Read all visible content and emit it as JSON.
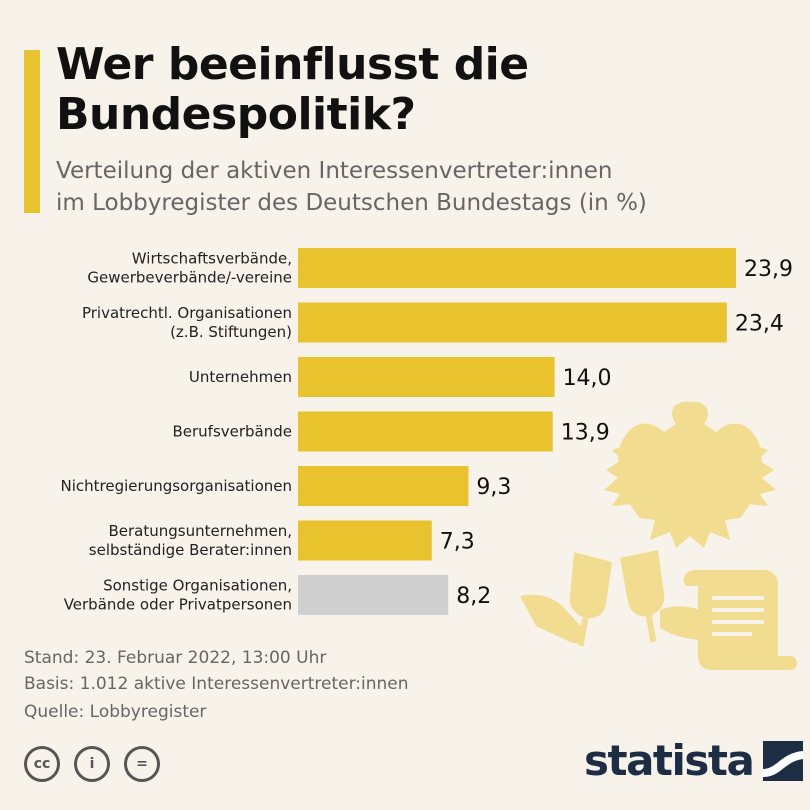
{
  "header": {
    "title": "Wer beeinflusst die\nBundespolitik?",
    "subtitle": "Verteilung der aktiven Interessenvertreter:innen\nim Lobbyregister des Deutschen Bundestags (in %)"
  },
  "colors": {
    "accent": "#e8c32e",
    "bar": "#e8c32e",
    "bar_other": "#cfcfcf",
    "illustration": "#f2dc90"
  },
  "chart_data": {
    "type": "bar",
    "orientation": "horizontal",
    "categories": [
      [
        "Wirtschaftsverbände,",
        "Gewerbeverbände/-vereine"
      ],
      [
        "Privatrechtl. Organisationen",
        "(z.B. Stiftungen)"
      ],
      [
        "Unternehmen"
      ],
      [
        "Berufsverbände"
      ],
      [
        "Nichtregierungsorganisationen"
      ],
      [
        "Beratungsunternehmen,",
        "selbständige Berater:innen"
      ],
      [
        "Sonstige Organisationen,",
        "Verbände oder Privatpersonen"
      ]
    ],
    "values": [
      23.9,
      23.4,
      14.0,
      13.9,
      9.3,
      7.3,
      8.2
    ],
    "value_labels": [
      "23,9",
      "23,4",
      "14,0",
      "13,9",
      "9,3",
      "7,3",
      "8,2"
    ],
    "highlight": [
      true,
      true,
      true,
      true,
      true,
      true,
      false
    ],
    "title": "Wer beeinflusst die Bundespolitik?",
    "xlim": [
      0,
      25
    ],
    "grid": false,
    "legend": "none"
  },
  "footer": {
    "stand": "Stand: 23. Februar 2022, 13:00 Uhr",
    "basis": "Basis: 1.012 aktive Interessenvertreter:innen",
    "quelle": "Quelle: Lobbyregister",
    "license_icons": [
      "cc-icon",
      "attribution-icon",
      "noderivs-icon"
    ],
    "license_glyphs": [
      "cc",
      "i",
      "="
    ],
    "brand": "statista"
  }
}
